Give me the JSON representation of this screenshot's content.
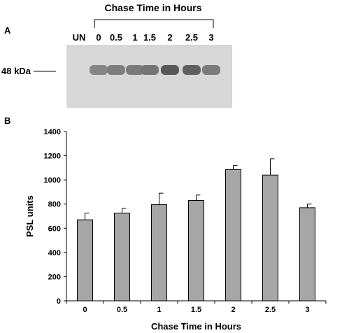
{
  "panel_a": {
    "label": "A",
    "header": "Chase Time in Hours",
    "marker_label": "48 kDa",
    "lanes": [
      "UN",
      "0",
      "0.5",
      "1",
      "1.5",
      "2",
      "2.5",
      "3"
    ],
    "band_intensity": [
      0,
      0.55,
      0.6,
      0.62,
      0.66,
      0.85,
      0.8,
      0.62
    ]
  },
  "panel_b": {
    "label": "B"
  },
  "chart_data": {
    "type": "bar",
    "categories": [
      "0",
      "0.5",
      "1",
      "1.5",
      "2",
      "2.5",
      "3"
    ],
    "values": [
      670,
      725,
      795,
      830,
      1085,
      1040,
      770
    ],
    "errors": [
      55,
      40,
      95,
      45,
      35,
      135,
      30
    ],
    "xlabel": "Chase Time in Hours",
    "ylabel": "PSL units",
    "ylim": [
      0,
      1400
    ],
    "yticks": [
      0,
      200,
      400,
      600,
      800,
      1000,
      1200,
      1400
    ],
    "bar_color": "#a6a6a6",
    "grid": false
  }
}
